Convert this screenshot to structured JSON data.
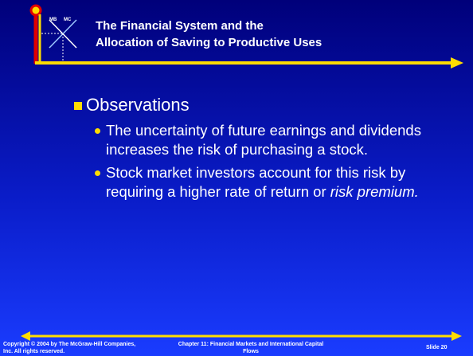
{
  "header": {
    "logo_labels": [
      "MB",
      "MC"
    ],
    "title_lines": [
      "The Financial System and the",
      "Allocation of Saving to Productive Uses"
    ]
  },
  "body": {
    "heading": "Observations",
    "bullets": [
      {
        "runs": [
          {
            "text": "The uncertainty of future earnings and dividends increases the risk of purchasing a stock.",
            "italic": false
          }
        ]
      },
      {
        "runs": [
          {
            "text": "Stock market investors account for this risk by requiring a higher rate of return or ",
            "italic": false
          },
          {
            "text": "risk premium.",
            "italic": true
          }
        ]
      }
    ]
  },
  "footer": {
    "copyright": "Copyright © 2004 by The McGraw-Hill Companies, Inc.  All rights reserved.",
    "chapter": "Chapter 11: Financial Markets and International Capital Flows",
    "slide": "Slide 20"
  }
}
